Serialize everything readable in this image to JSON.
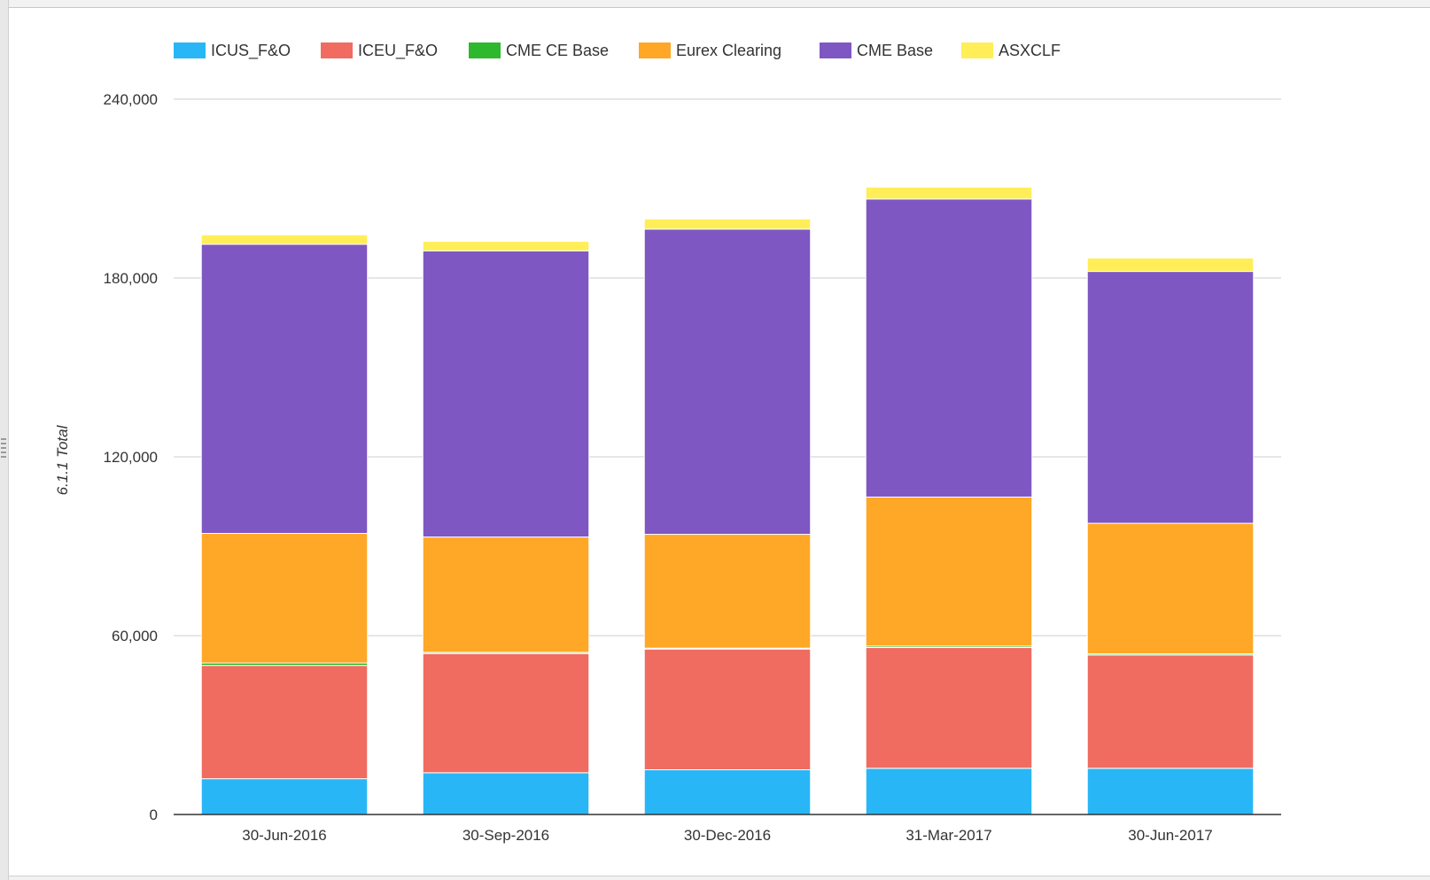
{
  "chart_data": {
    "type": "bar",
    "stacked": true,
    "categories": [
      "30-Jun-2016",
      "30-Sep-2016",
      "30-Dec-2016",
      "31-Mar-2017",
      "30-Jun-2017"
    ],
    "series": [
      {
        "name": "ICUS_F&O",
        "color": "#29b6f6",
        "values": [
          12000,
          14000,
          15000,
          15500,
          15500
        ]
      },
      {
        "name": "ICEU_F&O",
        "color": "#f06b60",
        "values": [
          38000,
          40000,
          40500,
          40500,
          38000
        ]
      },
      {
        "name": "CME CE Base",
        "color": "#2eb82e",
        "values": [
          800,
          400,
          300,
          500,
          400
        ]
      },
      {
        "name": "Eurex Clearing",
        "color": "#ffa726",
        "values": [
          43500,
          38700,
          38200,
          50000,
          43800
        ]
      },
      {
        "name": "CME Base",
        "color": "#7e57c2",
        "values": [
          97000,
          96000,
          102400,
          100000,
          84500
        ]
      },
      {
        "name": "ASXCLF",
        "color": "#ffee58",
        "values": [
          3200,
          3200,
          3400,
          4000,
          4500
        ]
      }
    ],
    "title": "",
    "xlabel": "",
    "ylabel": "6.1.1 Total",
    "ylim": [
      0,
      240000
    ],
    "yticks": [
      "0",
      "60,000",
      "120,000",
      "180,000",
      "240,000"
    ],
    "ytick_values": [
      0,
      60000,
      120000,
      180000,
      240000
    ],
    "grid": true,
    "legend_position": "top-left"
  }
}
